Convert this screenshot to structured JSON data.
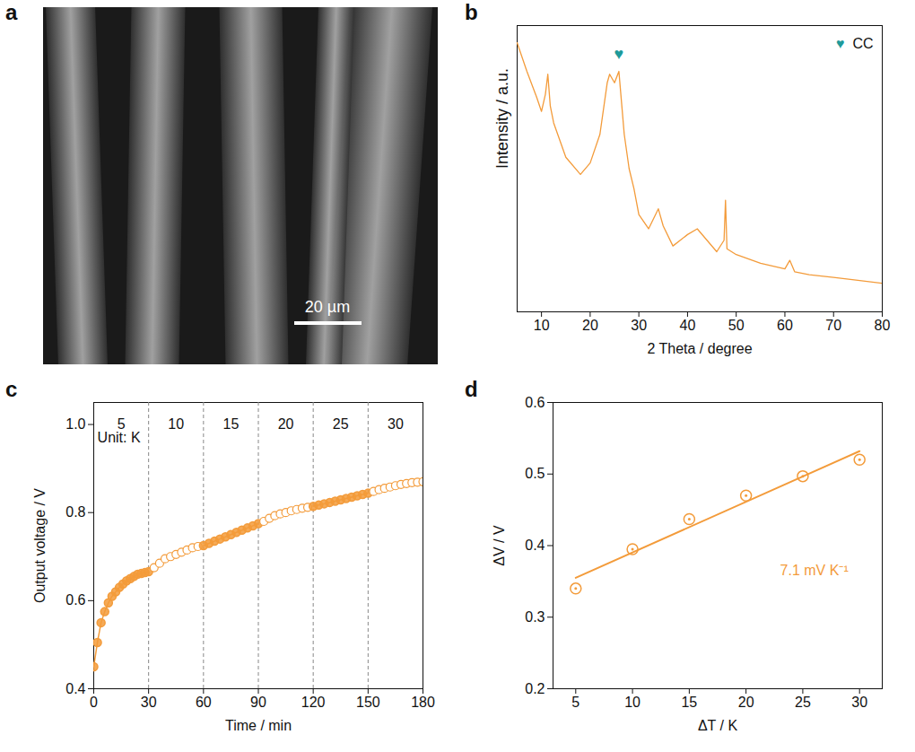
{
  "chart_data": [
    {
      "type": "image",
      "label": "a",
      "scale_bar": "20 µm"
    },
    {
      "type": "line",
      "label": "b",
      "x_label": "2 Theta / degree",
      "y_label": "Intensity / a.u.",
      "color": "#F39B3A",
      "grid": false,
      "tick_labels": "x",
      "legend": "top-right",
      "xlim": [
        5,
        80
      ],
      "xticks": [
        10,
        20,
        30,
        40,
        50,
        60,
        70,
        80
      ],
      "ylim": [
        0,
        100
      ],
      "yticks": [],
      "x": [
        5,
        7,
        9,
        10,
        10.8,
        11.3,
        11.8,
        12.5,
        15,
        18,
        20,
        22,
        23.5,
        24,
        25,
        25.9,
        26.5,
        27,
        28,
        29,
        30,
        32,
        34,
        35,
        37,
        40,
        42,
        44,
        46,
        47.5,
        47.8,
        48.1,
        50,
        55,
        60,
        61,
        62,
        65,
        70,
        75,
        80
      ],
      "values": [
        94,
        84,
        75,
        70,
        76,
        83,
        72,
        66,
        54,
        48,
        52,
        62,
        80,
        83,
        80,
        84,
        72,
        62,
        50,
        43,
        34,
        29,
        36,
        30,
        23,
        27,
        29,
        25,
        21,
        25,
        39,
        22,
        20,
        17,
        15,
        18,
        14,
        13,
        12,
        11,
        10
      ],
      "markers": [
        {
          "label": "CC",
          "symbol": "♥",
          "x": 25.9,
          "y": 90,
          "color": "#1E9A9A"
        }
      ]
    },
    {
      "type": "scatter",
      "label": "c",
      "x_label": "Time / min",
      "y_label": "Output voltage / V",
      "color": "#F39B3A",
      "grid": false,
      "xlim": [
        0,
        180
      ],
      "xticks": [
        0,
        30,
        60,
        90,
        120,
        150,
        180
      ],
      "ylim": [
        0.4,
        1.05
      ],
      "yticks": [
        0.4,
        0.6,
        0.8,
        {
          "value": 1,
          "label": "1.0"
        }
      ],
      "regions": {
        "bounds": [
          0,
          30,
          60,
          90,
          120,
          150,
          180
        ],
        "labels": [
          5,
          10,
          15,
          20,
          25,
          30
        ]
      },
      "annotations": [
        {
          "text": "Unit: K",
          "x": 2,
          "y": 0.97
        }
      ],
      "series": [
        {
          "marker": "filled",
          "line_style": "solid",
          "x": [
            0,
            2,
            4,
            6,
            8,
            10,
            12,
            14,
            16,
            18,
            20,
            22,
            24,
            26,
            28,
            30
          ],
          "values": [
            0.45,
            0.505,
            0.55,
            0.575,
            0.595,
            0.61,
            0.62,
            0.63,
            0.638,
            0.645,
            0.65,
            0.655,
            0.66,
            0.662,
            0.664,
            0.666
          ]
        },
        {
          "marker": "open",
          "line_style": "none",
          "x": [
            33,
            36,
            39,
            42,
            45,
            48,
            51,
            54,
            57
          ],
          "values": [
            0.675,
            0.685,
            0.695,
            0.7,
            0.705,
            0.71,
            0.715,
            0.72,
            0.723
          ]
        },
        {
          "marker": "filled",
          "line_style": "solid",
          "x": [
            60,
            63,
            66,
            69,
            72,
            75,
            78,
            81,
            84,
            87,
            90
          ],
          "values": [
            0.725,
            0.73,
            0.735,
            0.74,
            0.745,
            0.75,
            0.755,
            0.76,
            0.765,
            0.77,
            0.775
          ]
        },
        {
          "marker": "open",
          "line_style": "none",
          "x": [
            93,
            96,
            99,
            102,
            105,
            108,
            111,
            114,
            117
          ],
          "values": [
            0.78,
            0.787,
            0.793,
            0.797,
            0.8,
            0.804,
            0.807,
            0.81,
            0.812
          ]
        },
        {
          "marker": "filled",
          "line_style": "solid",
          "x": [
            120,
            123,
            126,
            129,
            132,
            135,
            138,
            141,
            144,
            147,
            150
          ],
          "values": [
            0.814,
            0.817,
            0.82,
            0.823,
            0.826,
            0.829,
            0.832,
            0.835,
            0.838,
            0.841,
            0.844
          ]
        },
        {
          "marker": "open",
          "line_style": "none",
          "x": [
            153,
            156,
            159,
            162,
            165,
            168,
            171,
            174,
            177,
            180
          ],
          "values": [
            0.848,
            0.852,
            0.855,
            0.858,
            0.861,
            0.864,
            0.866,
            0.868,
            0.869,
            0.87
          ]
        }
      ]
    },
    {
      "type": "scatter",
      "label": "d",
      "x_label": "ΔT / K",
      "y_label": "ΔV / V",
      "color": "#F39B3A",
      "grid": false,
      "xlim": [
        3,
        32
      ],
      "xticks": [
        5,
        10,
        15,
        20,
        25,
        30
      ],
      "ylim": [
        0.2,
        0.6
      ],
      "yticks": [
        0.2,
        0.3,
        0.4,
        0.5,
        0.6
      ],
      "annotations": [
        {
          "text": "7.1 mV K⁻¹",
          "x": 23,
          "y": 0.365
        }
      ],
      "series": [
        {
          "type": "scatter",
          "marker": "circle-dot",
          "x": [
            5,
            10,
            15,
            20,
            25,
            30
          ],
          "values": [
            0.34,
            0.395,
            0.437,
            0.47,
            0.497,
            0.52
          ]
        },
        {
          "type": "line",
          "line_style": "solid",
          "x": [
            5,
            30
          ],
          "values": [
            0.355,
            0.532
          ]
        }
      ]
    }
  ]
}
